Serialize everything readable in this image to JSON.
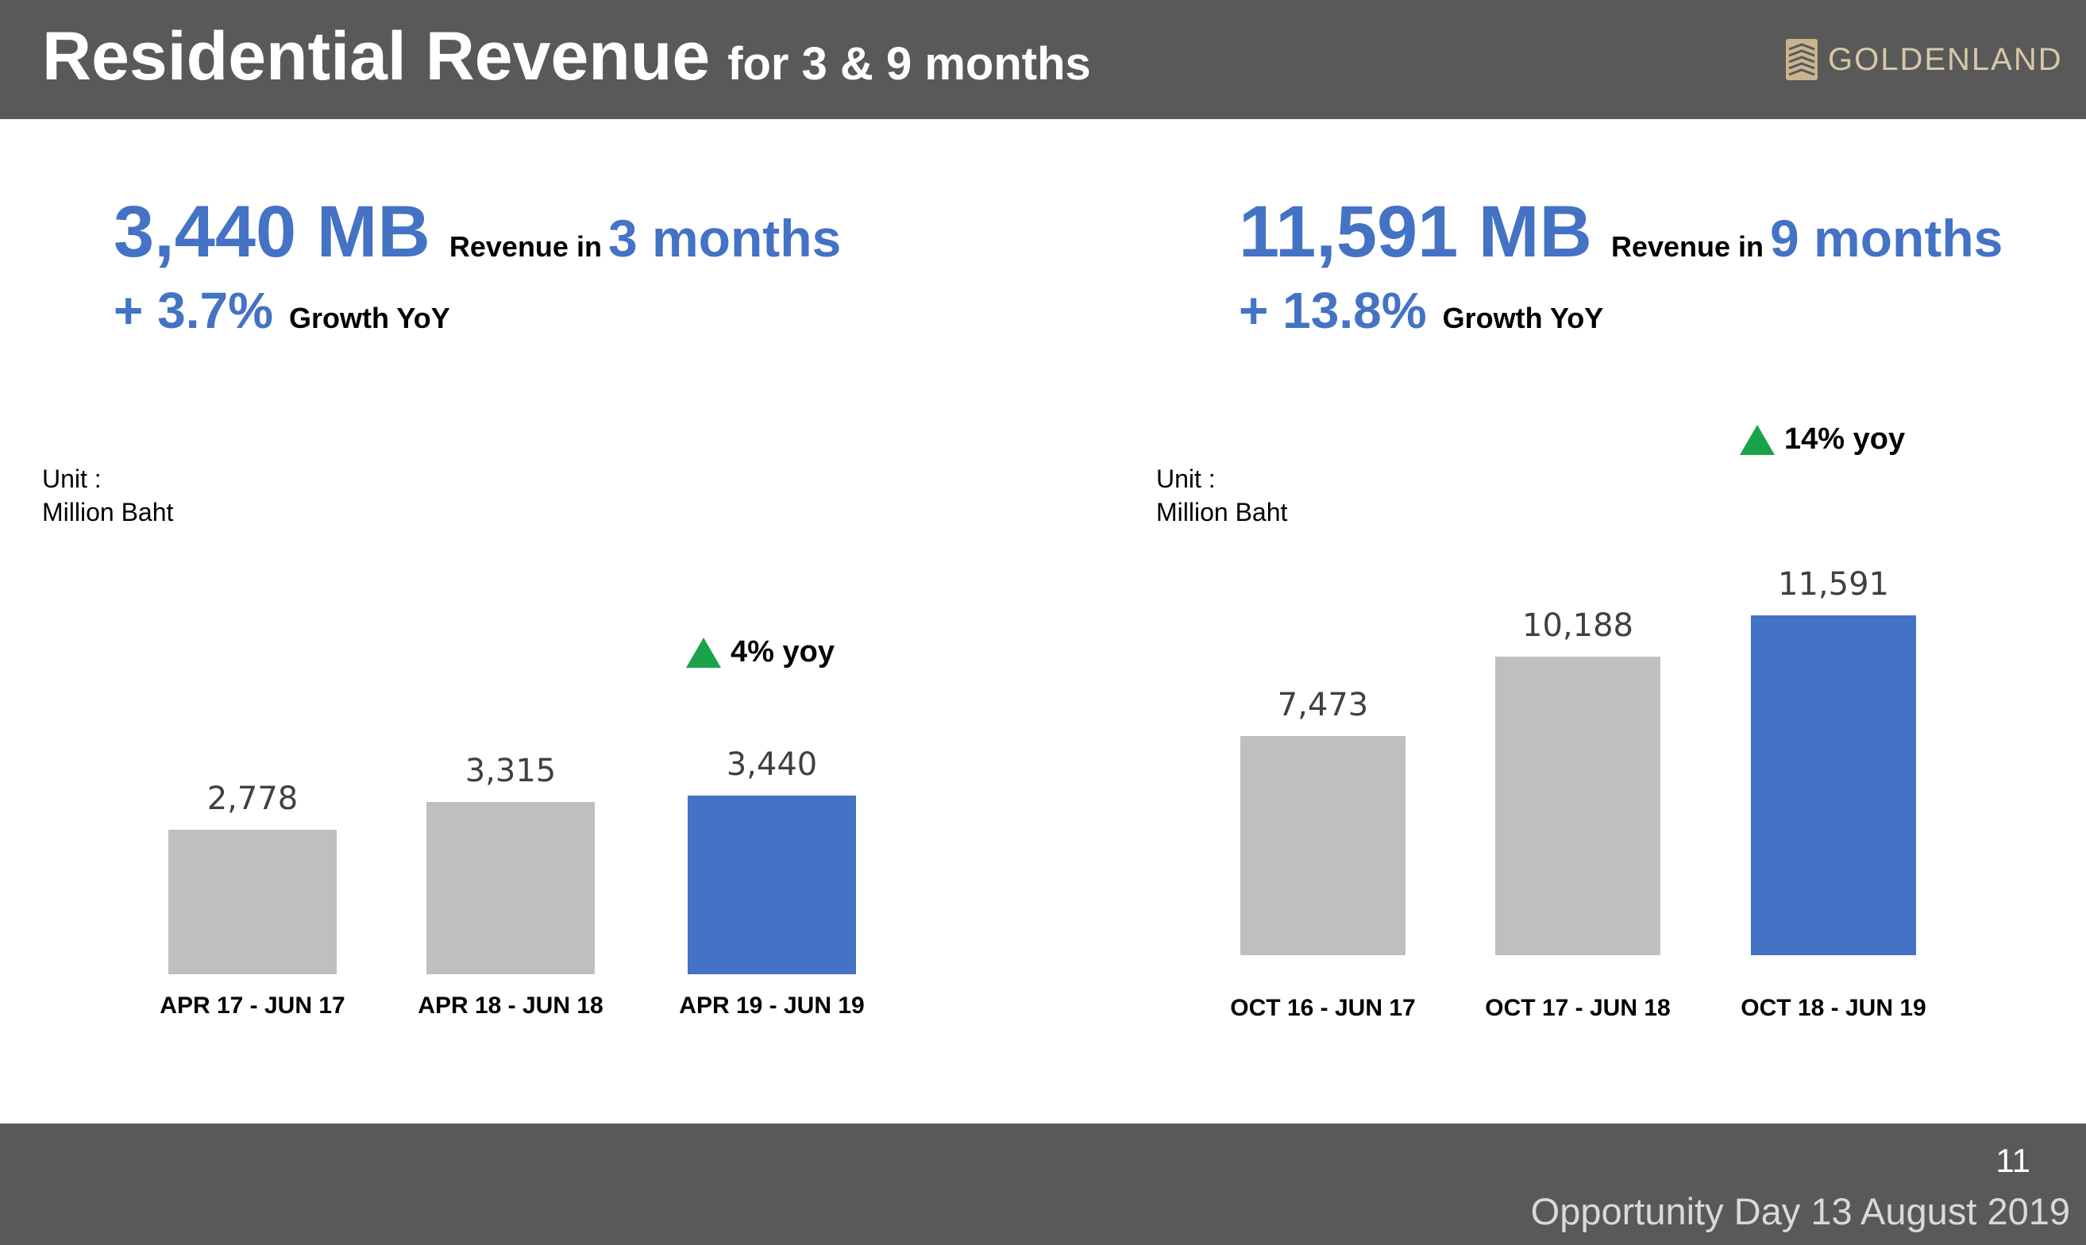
{
  "header": {
    "title": "Residential Revenue",
    "subtitle": "for 3 & 9 months",
    "logo_text": "GOLDENLAND"
  },
  "left": {
    "kpi_value": "3,440 MB",
    "kpi_desc": "Revenue in",
    "kpi_period": "3 months",
    "growth_value": "+ 3.7%",
    "growth_desc": "Growth YoY",
    "unit_line1": "Unit :",
    "unit_line2": "Million Baht",
    "yoy_label": "4% yoy"
  },
  "right": {
    "kpi_value": "11,591 MB",
    "kpi_desc": "Revenue in",
    "kpi_period": "9 months",
    "growth_value": "+ 13.8%",
    "growth_desc": "Growth YoY",
    "unit_line1": "Unit :",
    "unit_line2": "Million Baht",
    "yoy_label": "14% yoy"
  },
  "colors": {
    "accent": "#4472c4",
    "bar_gray": "#bfbfbf",
    "header_bg": "#595959",
    "up_arrow": "#1aa34a"
  },
  "footer": {
    "page_number": "11",
    "event": "Opportunity Day 13 August 2019"
  },
  "chart_data": [
    {
      "type": "bar",
      "categories": [
        "APR 17 - JUN 17",
        "APR 18 - JUN 18",
        "APR 19 - JUN 19"
      ],
      "values": [
        2778,
        3315,
        3440
      ],
      "value_labels": [
        "2,778",
        "3,315",
        "3,440"
      ],
      "highlight_index": 2,
      "ylabel": "Million Baht"
    },
    {
      "type": "bar",
      "categories": [
        "OCT 16 - JUN 17",
        "OCT 17 - JUN 18",
        "OCT 18 - JUN 19"
      ],
      "values": [
        7473,
        10188,
        11591
      ],
      "value_labels": [
        "7,473",
        "10,188",
        "11,591"
      ],
      "highlight_index": 2,
      "ylabel": "Million Baht"
    }
  ]
}
